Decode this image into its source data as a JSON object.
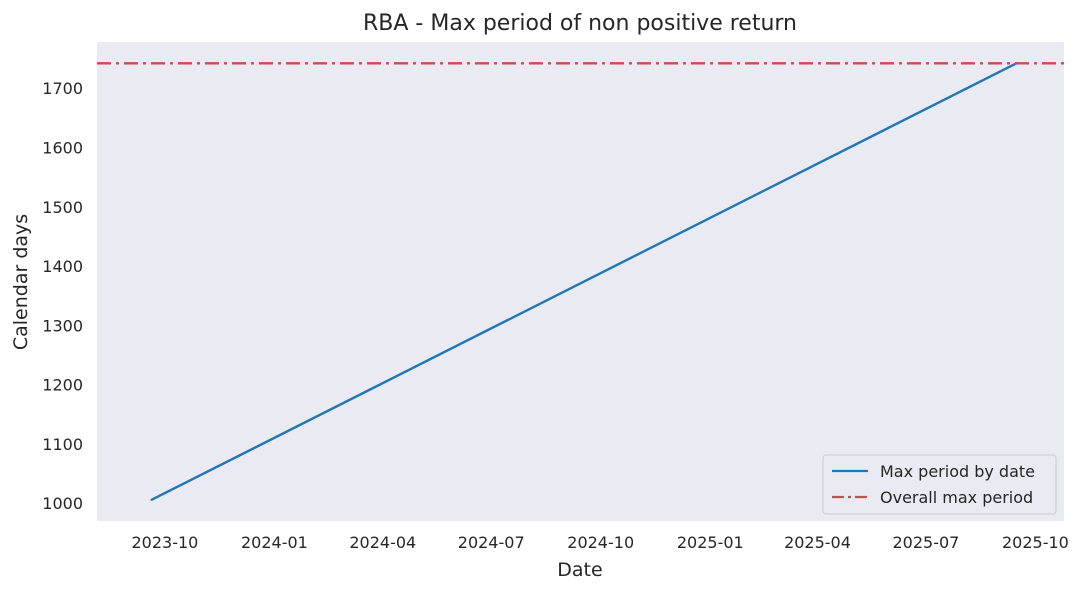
{
  "chart_data": {
    "type": "line",
    "title": "RBA - Max period of non positive return",
    "xlabel": "Date",
    "ylabel": "Calendar days",
    "x_range": [
      "2023-08-05",
      "2025-10-25"
    ],
    "y_range": [
      970,
      1778
    ],
    "x_ticks": [
      "2023-10",
      "2024-01",
      "2024-04",
      "2024-07",
      "2024-10",
      "2025-01",
      "2025-04",
      "2025-07",
      "2025-10"
    ],
    "y_ticks": [
      1000,
      1100,
      1200,
      1300,
      1400,
      1500,
      1600,
      1700
    ],
    "grid": false,
    "legend_position": "bottom-right",
    "background_color": "#eaeaf2",
    "series": [
      {
        "name": "Max period by date",
        "style": "solid",
        "color": "#1f77b4",
        "x": [
          "2023-09-20",
          "2025-09-15"
        ],
        "y": [
          1006,
          1742
        ]
      },
      {
        "name": "Overall max period",
        "style": "dashdot",
        "color": "#c44e52",
        "constant_y": 1742
      }
    ]
  }
}
